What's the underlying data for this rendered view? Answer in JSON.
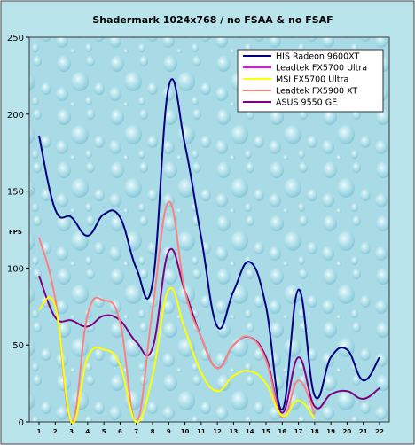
{
  "chart_data": {
    "type": "line",
    "title": "Shadermark 1024x768 / no FSAA & no FSAF",
    "xlabel": "",
    "ylabel": "FPS",
    "ylim": [
      0,
      250
    ],
    "yticks": [
      0,
      50,
      100,
      150,
      200,
      250
    ],
    "x": [
      1,
      2,
      3,
      4,
      5,
      6,
      7,
      8,
      9,
      10,
      11,
      12,
      13,
      14,
      15,
      16,
      17,
      18,
      19,
      20,
      21,
      22
    ],
    "grid": false,
    "legend_position": "top-right",
    "background": "water-droplets",
    "series": [
      {
        "name": "HIS Radeon 9600XT",
        "color": "#000080",
        "values": [
          186,
          138,
          133,
          121,
          135,
          133,
          100,
          90,
          218,
          180,
          120,
          62,
          85,
          104,
          75,
          8,
          86,
          17,
          42,
          47,
          27,
          42
        ]
      },
      {
        "name": "Leadtek FX5700 Ultra",
        "color": "#ff00ff",
        "values": [
          null,
          null,
          null,
          null,
          null,
          null,
          null,
          null,
          null,
          null,
          null,
          null,
          null,
          null,
          null,
          null,
          null,
          null,
          null,
          null,
          null,
          null
        ]
      },
      {
        "name": "MSI FX5700 Ultra",
        "color": "#ffff00",
        "values": [
          73,
          75,
          0,
          42,
          47,
          37,
          0,
          30,
          86,
          60,
          32,
          20,
          30,
          33,
          25,
          4,
          14,
          2,
          null,
          null,
          null,
          null
        ]
      },
      {
        "name": "Leadtek FX5900 XT",
        "color": "#ff8080",
        "values": [
          120,
          80,
          0,
          70,
          79,
          65,
          0,
          73,
          143,
          85,
          55,
          35,
          50,
          55,
          40,
          3,
          27,
          5,
          null,
          null,
          null,
          null
        ]
      },
      {
        "name": "ASUS 9550 GE",
        "color": "#800080",
        "values": [
          95,
          68,
          66,
          62,
          69,
          66,
          52,
          48,
          111,
          85,
          55,
          35,
          50,
          55,
          42,
          6,
          42,
          10,
          18,
          20,
          15,
          22
        ]
      }
    ]
  }
}
